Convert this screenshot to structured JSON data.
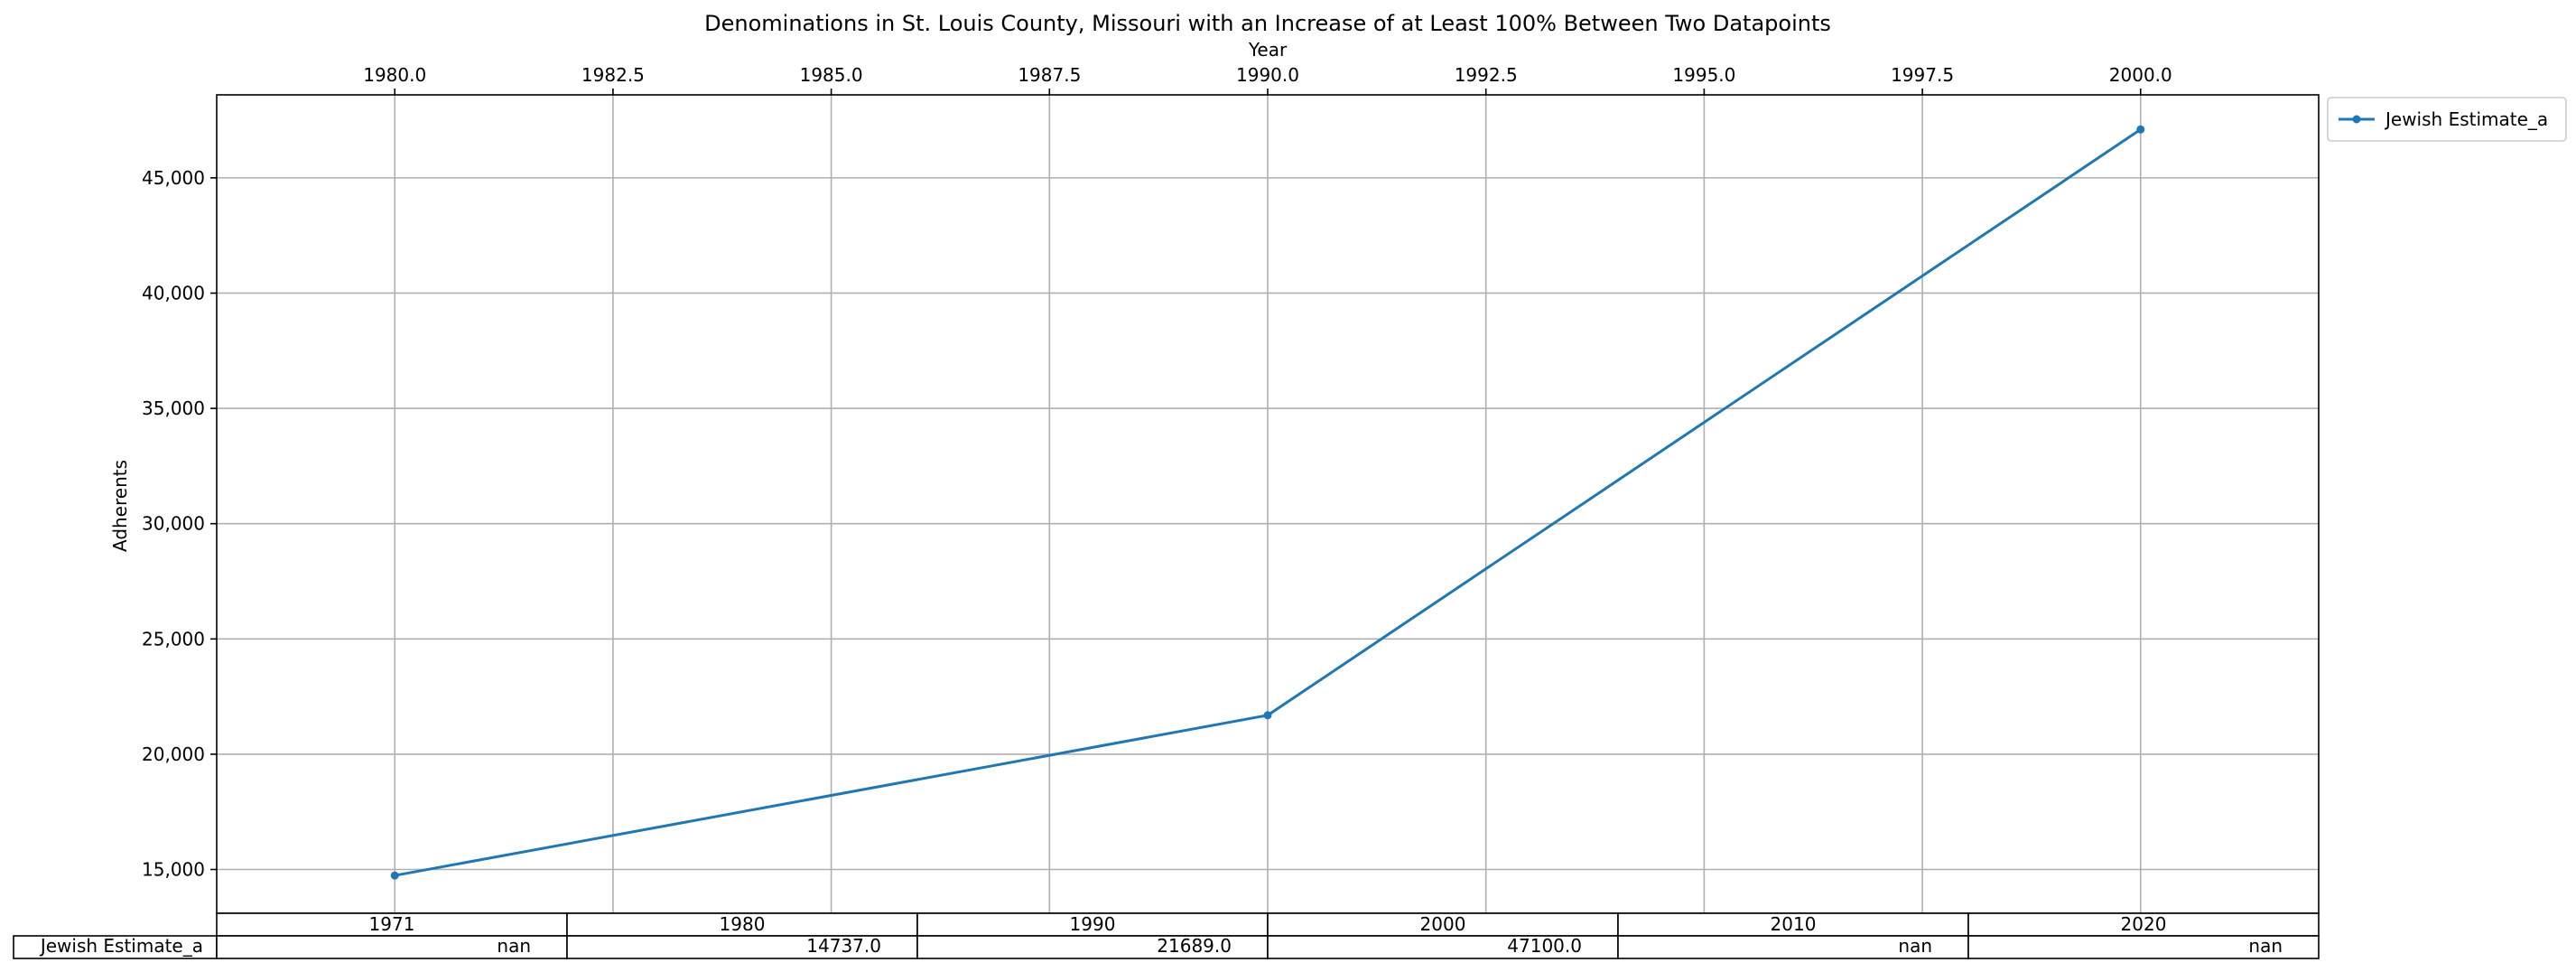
{
  "chart_data": {
    "type": "line",
    "title": "Denominations in St. Louis County, Missouri with an Increase of at Least 100% Between Two Datapoints",
    "xlabel": "Year",
    "ylabel": "Adherents",
    "x_axis_position": "top",
    "xlim": [
      1977.96,
      2002.04
    ],
    "ylim": [
      13100,
      48600
    ],
    "x_ticks": [
      1980.0,
      1982.5,
      1985.0,
      1987.5,
      1990.0,
      1992.5,
      1995.0,
      1997.5,
      2000.0
    ],
    "x_tick_labels": [
      "1980.0",
      "1982.5",
      "1985.0",
      "1987.5",
      "1990.0",
      "1992.5",
      "1995.0",
      "1997.5",
      "2000.0"
    ],
    "y_ticks": [
      15000,
      20000,
      25000,
      30000,
      35000,
      40000,
      45000
    ],
    "y_tick_labels": [
      "15,000",
      "20,000",
      "25,000",
      "30,000",
      "35,000",
      "40,000",
      "45,000"
    ],
    "grid": true,
    "legend_position": "outside-top-right",
    "series": [
      {
        "name": "Jewish Estimate_a",
        "color": "#1f77b4",
        "marker": "dot",
        "x": [
          1980,
          1990,
          2000
        ],
        "y": [
          14737.0,
          21689.0,
          47100.0
        ]
      }
    ],
    "table": {
      "columns": [
        "1971",
        "1980",
        "1990",
        "2000",
        "2010",
        "2020"
      ],
      "rows": [
        {
          "label": "Jewish Estimate_a",
          "values": [
            "nan",
            "14737.0",
            "21689.0",
            "47100.0",
            "nan",
            "nan"
          ]
        }
      ]
    }
  }
}
